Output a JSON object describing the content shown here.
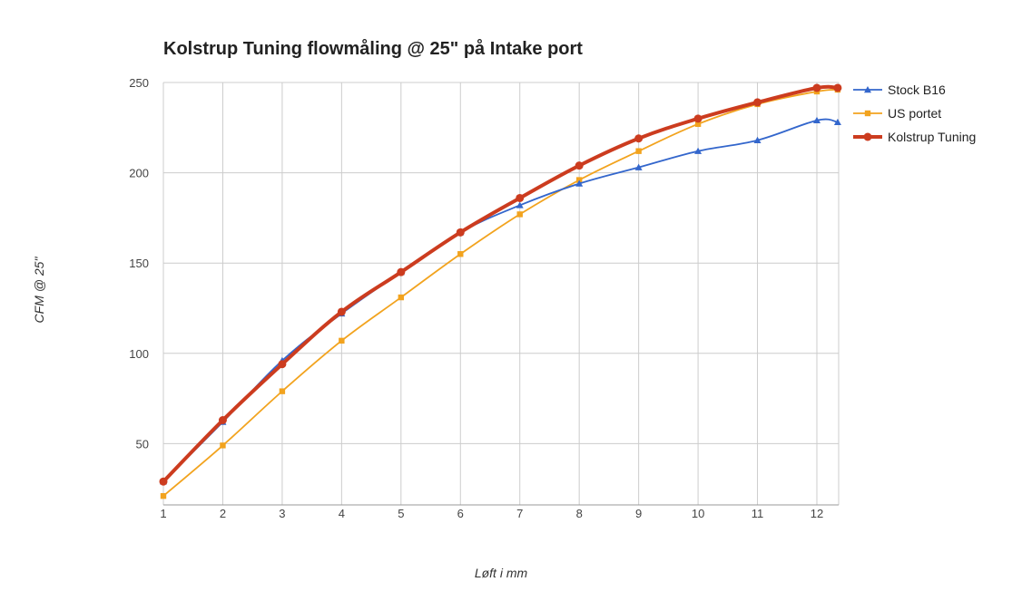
{
  "chart_data": {
    "type": "line",
    "title": "Kolstrup Tuning flowmåling @ 25\" på Intake port",
    "xlabel": "Løft i mm",
    "ylabel": "CFM @ 25\"",
    "x": [
      1,
      2,
      3,
      4,
      5,
      6,
      7,
      8,
      9,
      10,
      11,
      12,
      12.35
    ],
    "x_ticks": [
      "1",
      "2",
      "3",
      "4",
      "5",
      "6",
      "7",
      "8",
      "9",
      "10",
      "11",
      "12"
    ],
    "y_ticks": [
      "50",
      "100",
      "150",
      "200",
      "250"
    ],
    "xlim": [
      1,
      12.4
    ],
    "ylim": [
      20,
      250
    ],
    "grid": true,
    "legend_position": "right",
    "series": [
      {
        "name": "Stock B16",
        "color": "#3366cc",
        "marker": "triangle",
        "values": [
          29,
          62,
          96,
          122,
          145,
          167,
          182,
          194,
          203,
          212,
          218,
          229,
          228
        ]
      },
      {
        "name": "US portet",
        "color": "#f2a31e",
        "marker": "square",
        "values": [
          21,
          49,
          79,
          107,
          131,
          155,
          177,
          196,
          212,
          227,
          238,
          245,
          246
        ]
      },
      {
        "name": "Kolstrup Tuning",
        "color": "#cc3c1f",
        "marker": "circle",
        "values": [
          29,
          63,
          94,
          123,
          145,
          167,
          186,
          204,
          219,
          230,
          239,
          247,
          247
        ]
      }
    ]
  }
}
